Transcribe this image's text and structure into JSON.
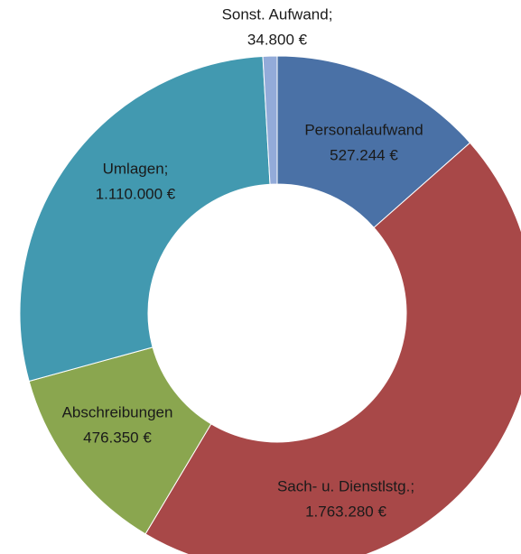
{
  "chart_data": {
    "type": "donut",
    "categories": [
      "Personalaufwand",
      "Sach- u. Dienstlstg.;",
      "Abschreibungen",
      "Umlagen;",
      "Sonst. Aufwand;"
    ],
    "values": [
      527244,
      1763280,
      476350,
      1110000,
      34800
    ],
    "value_labels": [
      "527.244 €",
      "1.763.280 €",
      "476.350 €",
      "1.110.000 €",
      "34.800 €"
    ],
    "colors": [
      "#4a71a6",
      "#a84848",
      "#8aa64f",
      "#4299b0",
      "#93abd9"
    ]
  }
}
